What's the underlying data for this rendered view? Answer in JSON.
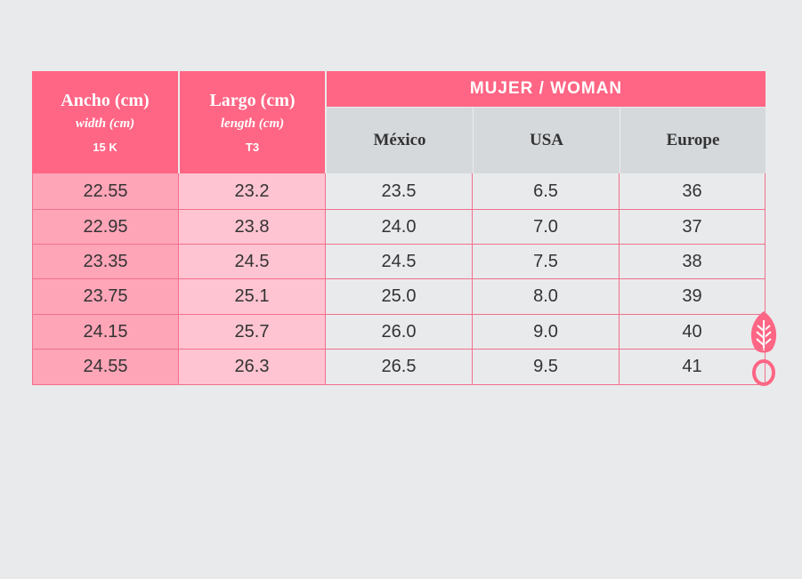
{
  "table": {
    "header": {
      "width_col": {
        "title": "Ancho (cm)",
        "subtitle": "width (cm)",
        "code": "15 K"
      },
      "length_col": {
        "title": "Largo (cm)",
        "subtitle": "length (cm)",
        "code": "T3"
      },
      "group": "MUJER / WOMAN",
      "columns": [
        "México",
        "USA",
        "Europe"
      ]
    },
    "rows": [
      [
        "22.55",
        "23.2",
        "23.5",
        "6.5",
        "36"
      ],
      [
        "22.95",
        "23.8",
        "24.0",
        "7.0",
        "37"
      ],
      [
        "23.35",
        "24.5",
        "24.5",
        "7.5",
        "38"
      ],
      [
        "23.75",
        "25.1",
        "25.0",
        "8.0",
        "39"
      ],
      [
        "24.15",
        "25.7",
        "26.0",
        "9.0",
        "40"
      ],
      [
        "24.55",
        "26.3",
        "26.5",
        "9.5",
        "41"
      ]
    ]
  }
}
